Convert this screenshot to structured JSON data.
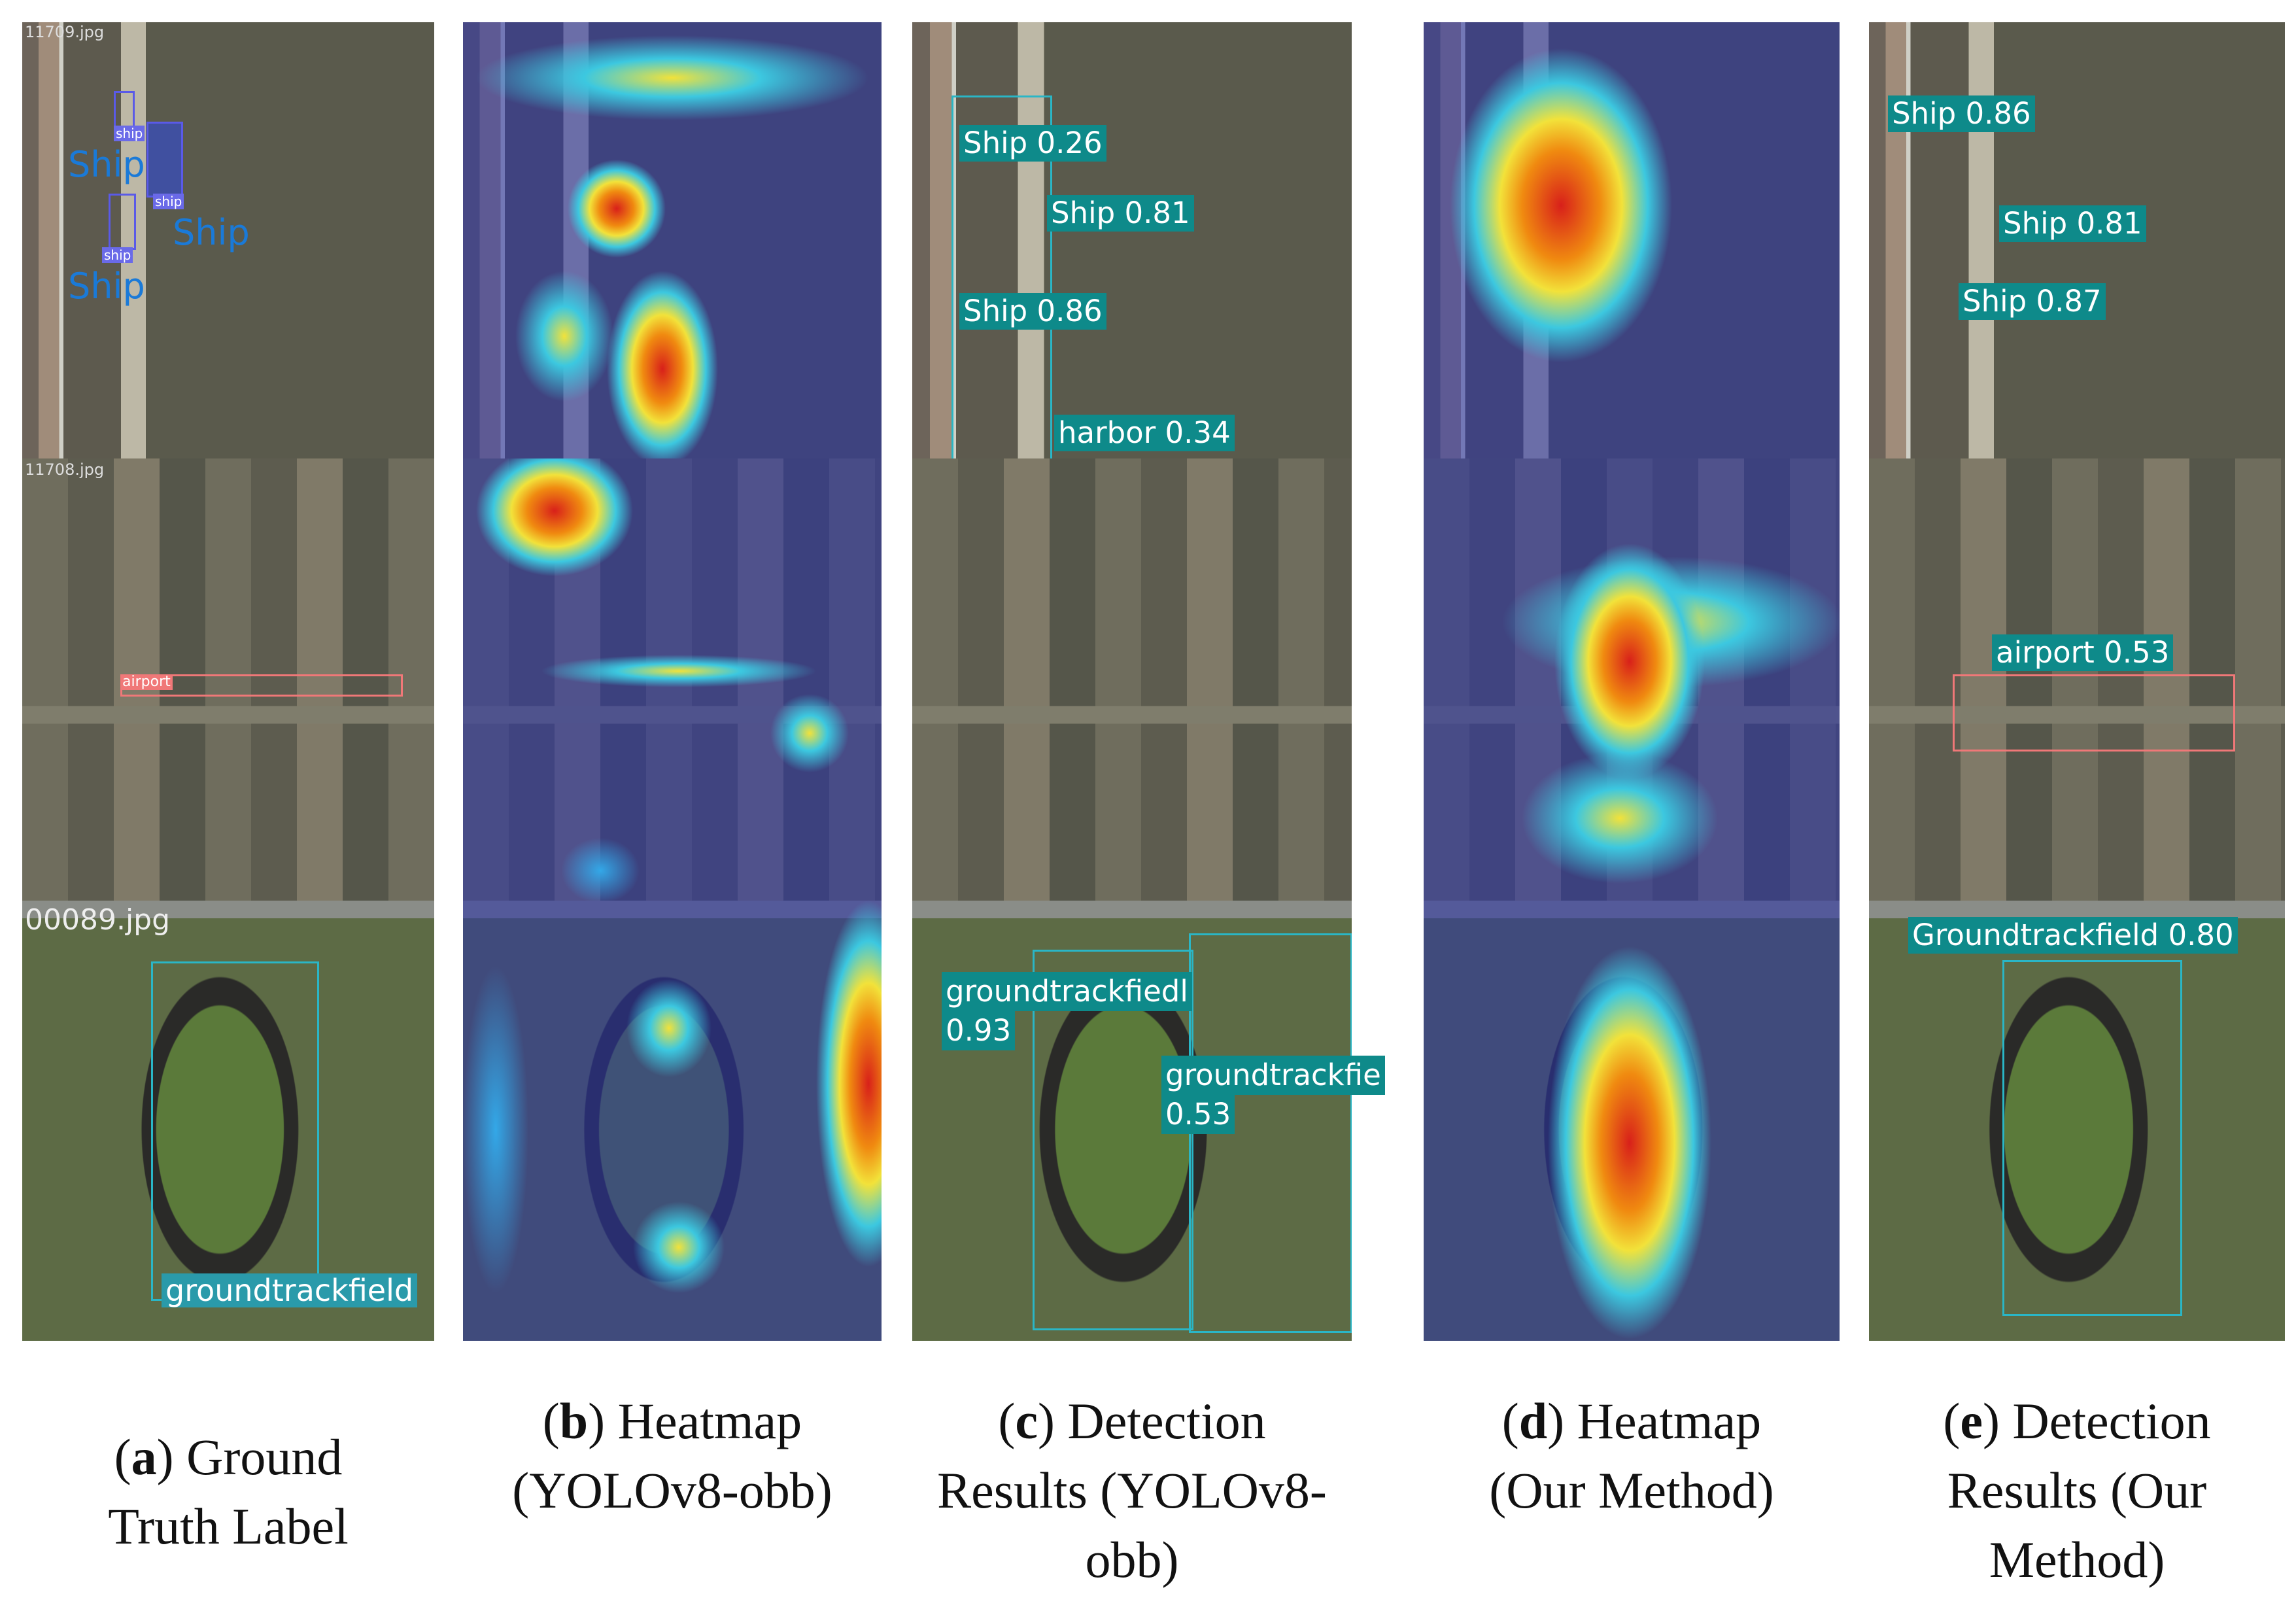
{
  "panels": {
    "a": {
      "file_names": [
        "11709.jpg",
        "11708.jpg",
        "00089.jpg"
      ],
      "small_labels": [
        "ship",
        "ship",
        "ship"
      ],
      "ship_labels": [
        "Ship",
        "Ship",
        "Ship"
      ],
      "airport_label": "airport",
      "groundtrack_label": "groundtrackfield"
    },
    "c": {
      "ship_labels": [
        "Ship 0.26",
        "Ship 0.81",
        "Ship 0.86"
      ],
      "harbor_label": "harbor 0.34",
      "gtf1_name": "groundtrackfiedl",
      "gtf1_score": "0.93",
      "gtf2_name": "groundtrackfie",
      "gtf2_score": "0.53"
    },
    "e": {
      "ship_labels": [
        "Ship 0.86",
        "Ship 0.81",
        "Ship 0.87"
      ],
      "airport_label": "airport 0.53",
      "groundtrack_label": "Groundtrackfield 0.80"
    }
  },
  "captions": [
    {
      "pre": "(",
      "letter": "a",
      "post": ") Ground",
      "line2": "Truth Label",
      "line3": ""
    },
    {
      "pre": "(",
      "letter": "b",
      "post": ") Heatmap",
      "line2": "(YOLOv8-obb)",
      "line3": ""
    },
    {
      "pre": "(",
      "letter": "c",
      "post": ") Detection",
      "line2": "Results (YOLOv8-",
      "line3": "obb)"
    },
    {
      "pre": "(",
      "letter": "d",
      "post": ") Heatmap",
      "line2": "(Our Method)",
      "line3": ""
    },
    {
      "pre": "(",
      "letter": "e",
      "post": ") Detection",
      "line2": "Results (Our",
      "line3": "Method)"
    }
  ]
}
